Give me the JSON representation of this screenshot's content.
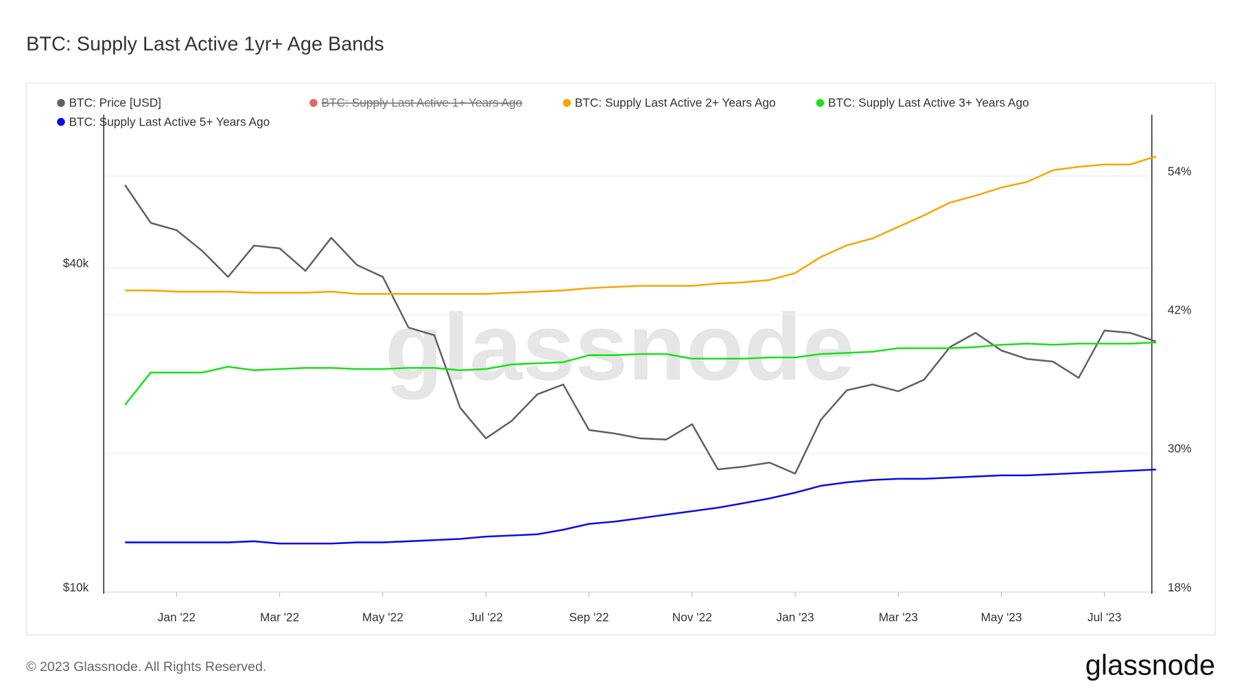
{
  "chart_data": {
    "type": "line",
    "title": "BTC: Supply Last Active 1yr+ Age Bands",
    "watermark": "glassnode",
    "footer": "© 2023 Glassnode. All Rights Reserved.",
    "brand": "glassnode",
    "legend": "top-left",
    "grid": true,
    "ylog": true,
    "categories": [
      null,
      null,
      "Jan '22",
      null,
      null,
      null,
      "Mar '22",
      null,
      null,
      null,
      "May '22",
      null,
      null,
      null,
      "Jul '22",
      null,
      null,
      null,
      "Sep '22",
      null,
      null,
      null,
      "Nov '22",
      null,
      null,
      null,
      "Jan '23",
      null,
      null,
      null,
      "Mar '23",
      null,
      null,
      null,
      "May '23",
      null,
      null,
      null,
      "Jul '23",
      null,
      null
    ],
    "ylim": [
      10000,
      77000
    ],
    "yticks": [
      {
        "value": 10000,
        "label": "$10k"
      },
      {
        "value": 40000,
        "label": "$40k"
      }
    ],
    "y2lim": [
      18,
      59.3
    ],
    "y2ticks": [
      {
        "value": 18,
        "label": "18%"
      },
      {
        "value": 30,
        "label": "30%"
      },
      {
        "value": 42,
        "label": "42%"
      },
      {
        "value": 54,
        "label": "54%"
      }
    ],
    "series": [
      {
        "name": "BTC: Price [USD]",
        "color": "#616161",
        "axis": "y",
        "values": [
          57000,
          48500,
          47000,
          43000,
          38500,
          44000,
          43500,
          39500,
          45500,
          40500,
          38500,
          31000,
          30000,
          22000,
          19300,
          20800,
          23300,
          24300,
          20000,
          19700,
          19300,
          19200,
          20500,
          16900,
          17100,
          17400,
          16600,
          20900,
          23700,
          24300,
          23600,
          24800,
          28500,
          30300,
          28100,
          27100,
          26800,
          25000,
          30600,
          30300,
          29200
        ]
      },
      {
        "name": "BTC: Supply Last Active 1+ Years Ago",
        "color": "#e06666",
        "hidden": true
      },
      {
        "name": "BTC: Supply Last Active 2+ Years Ago",
        "color": "#f7a600",
        "axis": "y2",
        "values": [
          44.1,
          44.1,
          44.0,
          44.0,
          44.0,
          43.9,
          43.9,
          43.9,
          44.0,
          43.8,
          43.8,
          43.8,
          43.8,
          43.8,
          43.8,
          43.9,
          44.0,
          44.1,
          44.3,
          44.4,
          44.5,
          44.5,
          44.5,
          44.7,
          44.8,
          45.0,
          45.6,
          47.0,
          48.0,
          48.6,
          49.6,
          50.6,
          51.7,
          52.3,
          53.0,
          53.5,
          54.5,
          54.8,
          55.0,
          55.0,
          55.7
        ]
      },
      {
        "name": "BTC: Supply Last Active 3+ Years Ago",
        "color": "#19e019",
        "axis": "y2",
        "values": [
          34.2,
          37.0,
          37.0,
          37.0,
          37.5,
          37.2,
          37.3,
          37.4,
          37.4,
          37.3,
          37.3,
          37.4,
          37.4,
          37.2,
          37.3,
          37.7,
          37.8,
          37.9,
          38.5,
          38.5,
          38.6,
          38.6,
          38.2,
          38.2,
          38.2,
          38.3,
          38.3,
          38.6,
          38.7,
          38.8,
          39.1,
          39.1,
          39.1,
          39.2,
          39.4,
          39.5,
          39.4,
          39.5,
          39.5,
          39.5,
          39.6
        ]
      },
      {
        "name": "BTC: Supply Last Active 5+ Years Ago",
        "color": "#0b0be6",
        "axis": "y2",
        "values": [
          22.3,
          22.3,
          22.3,
          22.3,
          22.3,
          22.4,
          22.2,
          22.2,
          22.2,
          22.3,
          22.3,
          22.4,
          22.5,
          22.6,
          22.8,
          22.9,
          23.0,
          23.4,
          23.9,
          24.1,
          24.4,
          24.7,
          25.0,
          25.3,
          25.7,
          26.1,
          26.6,
          27.2,
          27.5,
          27.7,
          27.8,
          27.8,
          27.9,
          28.0,
          28.1,
          28.1,
          28.2,
          28.3,
          28.4,
          28.5,
          28.6
        ]
      }
    ]
  }
}
